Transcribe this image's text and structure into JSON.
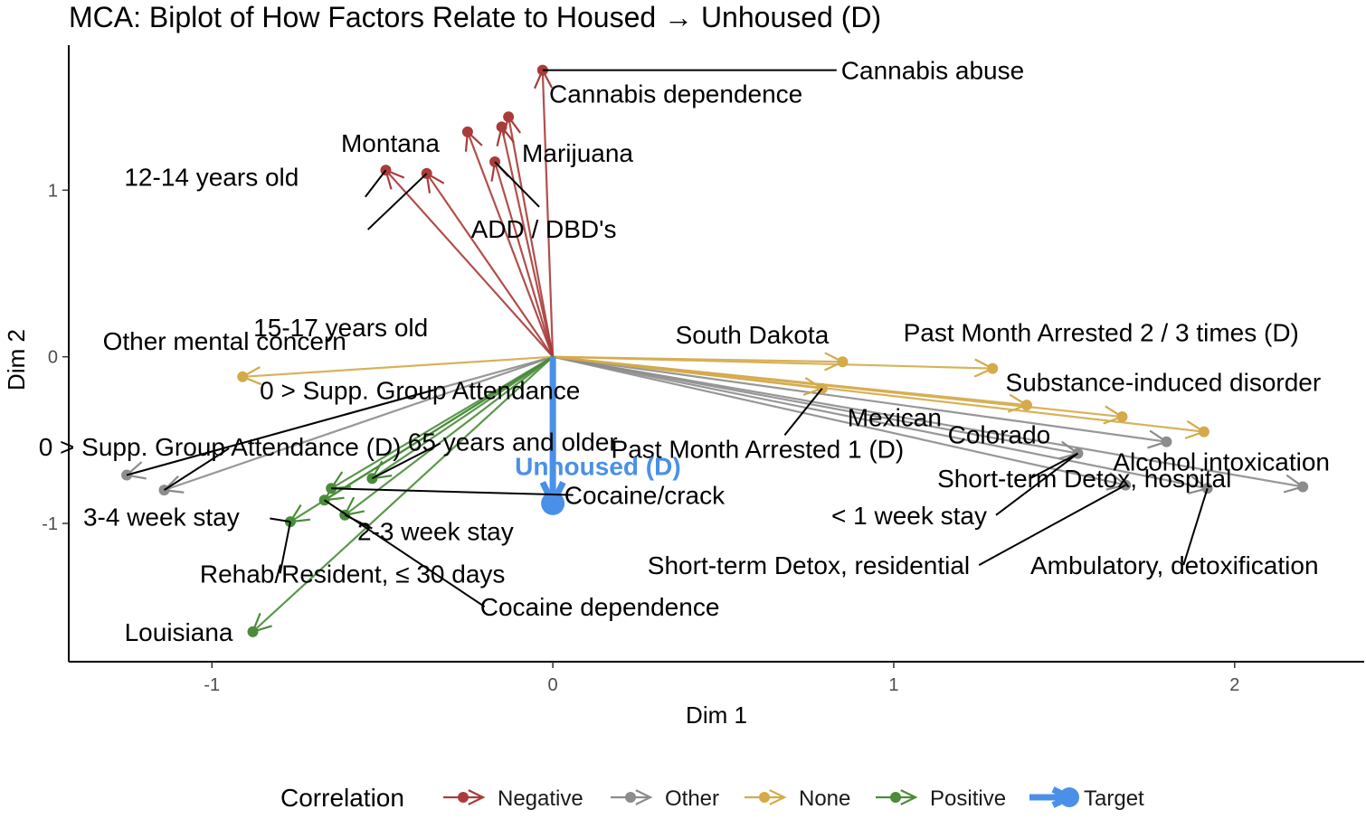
{
  "chart_data": {
    "type": "scatter",
    "title": "MCA: Biplot of How Factors Relate to Housed → Unhoused (D)",
    "xlabel": "Dim 1",
    "ylabel": "Dim 2",
    "xlim": [
      -1.42,
      2.38
    ],
    "ylim": [
      -1.83,
      1.87
    ],
    "x_ticks": [
      -1,
      0,
      1,
      2
    ],
    "y_ticks": [
      -1,
      0,
      1
    ],
    "grid": false,
    "legend": {
      "title": "Correlation",
      "position": "bottom",
      "entries": [
        {
          "name": "Negative",
          "color": "#a93c3a"
        },
        {
          "name": "Other",
          "color": "#8c8c8c"
        },
        {
          "name": "None",
          "color": "#d4aa4a"
        },
        {
          "name": "Positive",
          "color": "#4a8c3a"
        },
        {
          "name": "Target",
          "color": "#4a90e8"
        }
      ]
    },
    "origin": [
      0,
      0
    ],
    "target": {
      "label": "Unhoused (D)",
      "x": 0,
      "y": -0.88,
      "color": "#4a90e8"
    },
    "points": [
      {
        "label": "Cannabis abuse",
        "group": "Negative",
        "x": -0.03,
        "y": 1.72
      },
      {
        "label": "Cannabis dependence",
        "group": "Negative",
        "x": -0.13,
        "y": 1.44
      },
      {
        "label": "",
        "group": "Negative",
        "x": -0.25,
        "y": 1.35
      },
      {
        "label": "",
        "group": "Negative",
        "x": -0.15,
        "y": 1.38
      },
      {
        "label": "Marijuana",
        "group": "Negative",
        "x": -0.17,
        "y": 1.17
      },
      {
        "label": "Montana",
        "group": "Negative",
        "x": -0.49,
        "y": 1.12
      },
      {
        "label": "15-17 years old",
        "group": "Negative",
        "x": -0.37,
        "y": 1.1
      },
      {
        "label": "Other mental concern",
        "group": "None",
        "x": -0.91,
        "y": -0.12
      },
      {
        "label": "South Dakota",
        "group": "None",
        "x": 0.85,
        "y": -0.03
      },
      {
        "label": "Past Month Arrested 2 / 3 times (D)",
        "group": "None",
        "x": 1.29,
        "y": -0.07
      },
      {
        "label": "Mexican",
        "group": "None",
        "x": 0.79,
        "y": -0.19
      },
      {
        "label": "",
        "group": "None",
        "x": 1.39,
        "y": -0.29
      },
      {
        "label": "",
        "group": "None",
        "x": 1.67,
        "y": -0.36
      },
      {
        "label": "Substance-induced disorder",
        "group": "None",
        "x": 1.91,
        "y": -0.45
      },
      {
        "label": "",
        "group": "Other",
        "x": -1.25,
        "y": -0.71
      },
      {
        "label": "",
        "group": "Other",
        "x": -1.14,
        "y": -0.8
      },
      {
        "label": "Colorado",
        "group": "Other",
        "x": 1.8,
        "y": -0.51
      },
      {
        "label": "",
        "group": "Other",
        "x": 1.54,
        "y": -0.58
      },
      {
        "label": "",
        "group": "Other",
        "x": 1.68,
        "y": -0.77
      },
      {
        "label": "",
        "group": "Other",
        "x": 1.92,
        "y": -0.79
      },
      {
        "label": "Alcohol intoxication",
        "group": "Other",
        "x": 2.2,
        "y": -0.78
      },
      {
        "label": "",
        "group": "Positive",
        "x": -0.53,
        "y": -0.73
      },
      {
        "label": "",
        "group": "Positive",
        "x": -0.65,
        "y": -0.79
      },
      {
        "label": "",
        "group": "Positive",
        "x": -0.67,
        "y": -0.86
      },
      {
        "label": "",
        "group": "Positive",
        "x": -0.61,
        "y": -0.95
      },
      {
        "label": "",
        "group": "Positive",
        "x": -0.77,
        "y": -0.99
      },
      {
        "label": "Louisiana",
        "group": "Positive",
        "x": -0.88,
        "y": -1.65
      }
    ],
    "callouts": [
      {
        "label": "ADD / DBD's",
        "x": -0.04,
        "y": 0.9,
        "px": -0.17,
        "py": 1.17
      },
      {
        "label": "12-14 years old",
        "x": -0.55,
        "y": 0.96,
        "px": -0.49,
        "py": 1.12
      },
      {
        "label": "0 > Supp. Group Attendance",
        "x": -0.35,
        "y": -0.2,
        "px": -1.25,
        "py": -0.71
      },
      {
        "label": "0 > Supp. Group Attendance (D)",
        "x": -0.95,
        "y": -0.55,
        "px": -1.14,
        "py": -0.8
      },
      {
        "label": "3-4 week stay",
        "x": -0.83,
        "y": -0.97,
        "px": -0.77,
        "py": -0.99
      },
      {
        "label": "65 years and older",
        "x": -0.33,
        "y": -0.52,
        "px": -0.53,
        "py": -0.73
      },
      {
        "label": "Past Month Arrested 1 (D)",
        "x": 0.68,
        "y": -0.47,
        "px": 0.79,
        "py": -0.19
      },
      {
        "label": "Cocaine/crack",
        "x": 0.06,
        "y": -0.83,
        "px": -0.65,
        "py": -0.79
      },
      {
        "label": "2-3 week stay",
        "x": -0.53,
        "y": -1.03,
        "px": -0.61,
        "py": -0.95
      },
      {
        "label": "Rehab/Resident, ≤ 30 days",
        "x": -0.8,
        "y": -1.3,
        "px": -0.77,
        "py": -0.99
      },
      {
        "label": "Cocaine dependence",
        "x": -0.2,
        "y": -1.5,
        "px": -0.67,
        "py": -0.86
      },
      {
        "label": "Short-term Detox, hospital",
        "x": 1.4,
        "y": -0.73,
        "px": 1.54,
        "py": -0.58
      },
      {
        "label": "< 1 week stay",
        "x": 1.3,
        "y": -0.95,
        "px": 1.54,
        "py": -0.58
      },
      {
        "label": "Short-term Detox, residential",
        "x": 1.25,
        "y": -1.25,
        "px": 1.68,
        "py": -0.77
      },
      {
        "label": "Ambulatory, detoxification",
        "x": 1.85,
        "y": -1.25,
        "px": 1.92,
        "py": -0.79
      }
    ]
  }
}
